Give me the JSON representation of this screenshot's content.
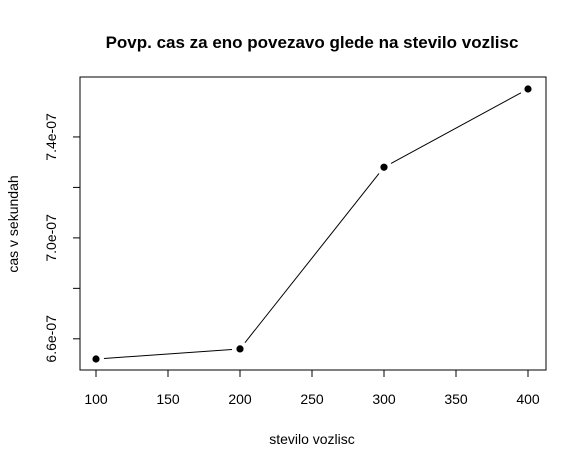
{
  "chart_data": {
    "type": "line",
    "title": "Povp. cas za eno povezavo glede na stevilo vozlisc",
    "xlabel": "stevilo vozlisc",
    "ylabel": "cas v sekundah",
    "x": [
      100,
      200,
      300,
      400
    ],
    "series": [
      {
        "values": [
          6.52e-07,
          6.56e-07,
          7.28e-07,
          7.59e-07
        ]
      }
    ],
    "xlim": [
      100,
      400
    ],
    "ylim": [
      6.52e-07,
      7.59e-07
    ],
    "xticks": [
      100,
      150,
      200,
      250,
      300,
      350,
      400
    ],
    "xtick_labels": [
      "100",
      "150",
      "200",
      "250",
      "300",
      "350",
      "400"
    ],
    "yticks": [
      6.6e-07,
      6.8e-07,
      7e-07,
      7.2e-07,
      7.4e-07
    ],
    "ytick_labels": [
      "6.6e-07",
      "",
      "7.0e-07",
      "",
      "7.4e-07"
    ],
    "grid": false,
    "legend": "none",
    "line_color": "#000000",
    "point_color": "#000000"
  }
}
